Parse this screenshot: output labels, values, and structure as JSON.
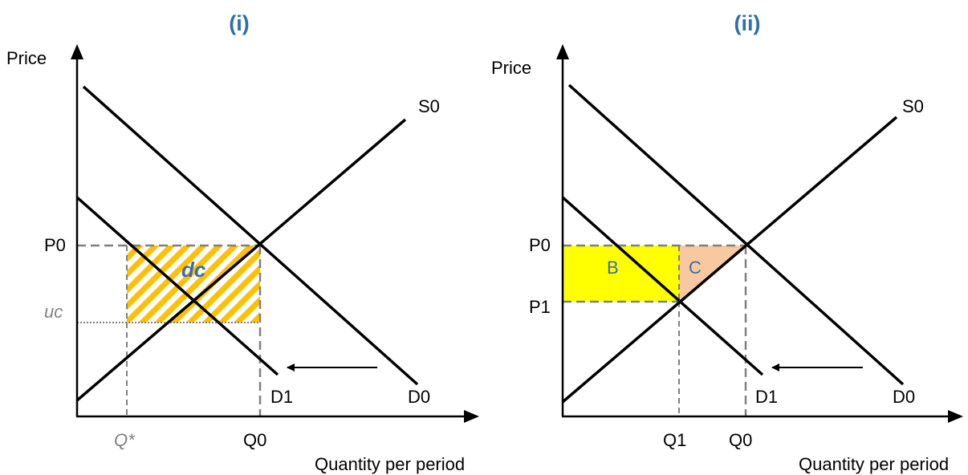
{
  "colors": {
    "title": "#2E6FA7",
    "hatch": "#FFC000",
    "area_b": "#FFFF00",
    "area_c": "#F8C8A0",
    "area_label": "#3A6EA5",
    "dashed": "#808080"
  },
  "panels": [
    {
      "title": "(i)",
      "y_axis_label": "Price",
      "x_axis_label": "Quantity per period",
      "labels": {
        "S0": "S0",
        "D0": "D0",
        "D1": "D1",
        "P0": "P0",
        "uc": "uc",
        "Q0": "Q0",
        "Qstar": "Q*",
        "dc": "dc"
      }
    },
    {
      "title": "(ii)",
      "y_axis_label": "Price",
      "x_axis_label": "Quantity per period",
      "labels": {
        "S0": "S0",
        "D0": "D0",
        "D1": "D1",
        "P0": "P0",
        "P1": "P1",
        "Q0": "Q0",
        "Q1": "Q1",
        "B": "B",
        "C": "C"
      }
    }
  ]
}
